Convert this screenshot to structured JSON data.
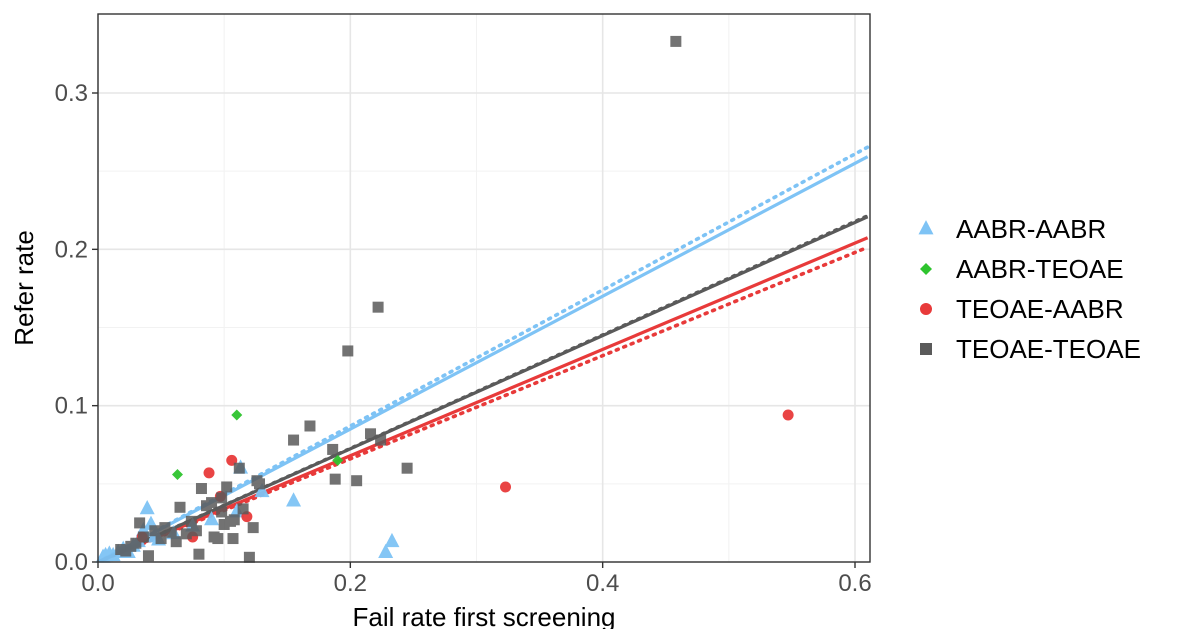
{
  "chart_data": {
    "type": "scatter",
    "title": "",
    "xlabel": "Fail rate first screening",
    "ylabel": "Refer rate",
    "xlim": [
      0,
      0.61
    ],
    "ylim": [
      0,
      0.35
    ],
    "x_ticks": [
      0.0,
      0.2,
      0.4,
      0.6
    ],
    "x_tick_labels": [
      "0.0",
      "0.2",
      "0.4",
      "0.6"
    ],
    "y_ticks": [
      0.0,
      0.1,
      0.2,
      0.3
    ],
    "y_tick_labels": [
      "0.0",
      "0.1",
      "0.2",
      "0.3"
    ],
    "grid": true,
    "legend_position": "right",
    "series": [
      {
        "name": "AABR-AABR",
        "color": "#7ec3f5",
        "marker": "triangle",
        "points": [
          [
            0.004,
            0.003
          ],
          [
            0.006,
            0.004
          ],
          [
            0.009,
            0.005
          ],
          [
            0.012,
            0.004
          ],
          [
            0.016,
            0.006
          ],
          [
            0.02,
            0.008
          ],
          [
            0.024,
            0.006
          ],
          [
            0.028,
            0.01
          ],
          [
            0.032,
            0.013
          ],
          [
            0.036,
            0.02
          ],
          [
            0.039,
            0.034
          ],
          [
            0.042,
            0.024
          ],
          [
            0.045,
            0.016
          ],
          [
            0.048,
            0.014
          ],
          [
            0.06,
            0.018
          ],
          [
            0.075,
            0.023
          ],
          [
            0.09,
            0.027
          ],
          [
            0.11,
            0.032
          ],
          [
            0.113,
            0.06
          ],
          [
            0.13,
            0.045
          ],
          [
            0.155,
            0.039
          ],
          [
            0.228,
            0.006
          ],
          [
            0.233,
            0.013
          ]
        ],
        "fit": {
          "style": "solid",
          "intercept": 0.0,
          "slope": 0.425
        },
        "fit2": {
          "style": "dotted",
          "intercept": 0.0,
          "slope": 0.435
        }
      },
      {
        "name": "AABR-TEOAE",
        "color": "#2ec42e",
        "marker": "diamond",
        "points": [
          [
            0.063,
            0.056
          ],
          [
            0.11,
            0.094
          ],
          [
            0.19,
            0.065
          ]
        ]
      },
      {
        "name": "TEOAE-AABR",
        "color": "#e83a3a",
        "marker": "circle",
        "points": [
          [
            0.035,
            0.016
          ],
          [
            0.075,
            0.016
          ],
          [
            0.088,
            0.057
          ],
          [
            0.097,
            0.042
          ],
          [
            0.106,
            0.065
          ],
          [
            0.118,
            0.029
          ],
          [
            0.323,
            0.048
          ],
          [
            0.547,
            0.094
          ]
        ],
        "fit": {
          "style": "solid",
          "intercept": 0.0,
          "slope": 0.34
        },
        "fit2": {
          "style": "dotted",
          "intercept": 0.0,
          "slope": 0.33
        }
      },
      {
        "name": "TEOAE-TEOAE",
        "color": "#5a5a5a",
        "marker": "square",
        "points": [
          [
            0.018,
            0.008
          ],
          [
            0.022,
            0.007
          ],
          [
            0.026,
            0.01
          ],
          [
            0.03,
            0.012
          ],
          [
            0.033,
            0.025
          ],
          [
            0.036,
            0.016
          ],
          [
            0.04,
            0.004
          ],
          [
            0.045,
            0.02
          ],
          [
            0.05,
            0.015
          ],
          [
            0.053,
            0.022
          ],
          [
            0.058,
            0.019
          ],
          [
            0.062,
            0.013
          ],
          [
            0.065,
            0.035
          ],
          [
            0.07,
            0.018
          ],
          [
            0.074,
            0.026
          ],
          [
            0.078,
            0.02
          ],
          [
            0.08,
            0.005
          ],
          [
            0.082,
            0.047
          ],
          [
            0.086,
            0.036
          ],
          [
            0.09,
            0.038
          ],
          [
            0.092,
            0.016
          ],
          [
            0.095,
            0.015
          ],
          [
            0.098,
            0.041
          ],
          [
            0.1,
            0.024
          ],
          [
            0.102,
            0.048
          ],
          [
            0.105,
            0.026
          ],
          [
            0.108,
            0.027
          ],
          [
            0.112,
            0.06
          ],
          [
            0.115,
            0.034
          ],
          [
            0.12,
            0.003
          ],
          [
            0.123,
            0.022
          ],
          [
            0.126,
            0.052
          ],
          [
            0.128,
            0.05
          ],
          [
            0.155,
            0.078
          ],
          [
            0.168,
            0.087
          ],
          [
            0.186,
            0.072
          ],
          [
            0.188,
            0.053
          ],
          [
            0.198,
            0.135
          ],
          [
            0.205,
            0.052
          ],
          [
            0.216,
            0.082
          ],
          [
            0.222,
            0.163
          ],
          [
            0.224,
            0.078
          ],
          [
            0.245,
            0.06
          ],
          [
            0.458,
            0.333
          ],
          [
            0.098,
            0.032
          ],
          [
            0.107,
            0.015
          ]
        ],
        "fit": {
          "style": "solid",
          "intercept": 0.0,
          "slope": 0.362
        },
        "fit2": {
          "style": "dotted",
          "intercept": 0.0,
          "slope": 0.363
        }
      }
    ]
  }
}
